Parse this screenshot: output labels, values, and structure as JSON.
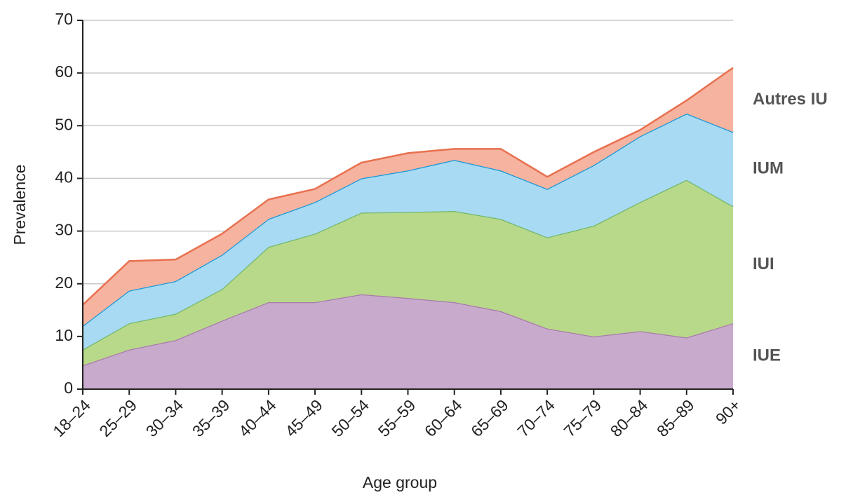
{
  "chart_data": {
    "type": "stacked_area",
    "x_label": "Age group",
    "y_label": "Prevalence",
    "categories": [
      "18–24",
      "25–29",
      "30–34",
      "35–39",
      "40–44",
      "45–49",
      "50–54",
      "55–59",
      "60–64",
      "65–69",
      "70–74",
      "75–79",
      "80–84",
      "85–89",
      "90+"
    ],
    "ylim": [
      0,
      70
    ],
    "yticks": [
      0,
      10,
      20,
      30,
      40,
      50,
      60,
      70
    ],
    "grid": true,
    "series": [
      {
        "name": "IUE",
        "color": "#c8abcc",
        "line_color": "#a97aab",
        "values": [
          4.5,
          7.5,
          9.3,
          13,
          16.5,
          16.5,
          18,
          17.3,
          16.5,
          14.8,
          11.5,
          10,
          11,
          9.8,
          12.5
        ]
      },
      {
        "name": "IUI",
        "color": "#b9d98a",
        "line_color": "#72b86a",
        "values": [
          3,
          5,
          5,
          6,
          10.5,
          13,
          15.5,
          16.3,
          17.3,
          17.5,
          17.3,
          21,
          24.5,
          29.9,
          22.2
        ]
      },
      {
        "name": "IUM",
        "color": "#a8daf3",
        "line_color": "#1a98d5",
        "values": [
          4.5,
          6.2,
          6.2,
          6.5,
          5.3,
          6,
          6.5,
          7.9,
          9.7,
          9.2,
          9.2,
          11.5,
          12.5,
          12.6,
          14.1
        ]
      },
      {
        "name": "Autres IU",
        "color": "#f5b3a0",
        "line_color": "#e8704f",
        "values": [
          4,
          5.6,
          4.1,
          4,
          3.7,
          2.5,
          3,
          3.3,
          2.1,
          4.1,
          2.3,
          2.5,
          1.2,
          2.5,
          12.2
        ]
      }
    ]
  }
}
